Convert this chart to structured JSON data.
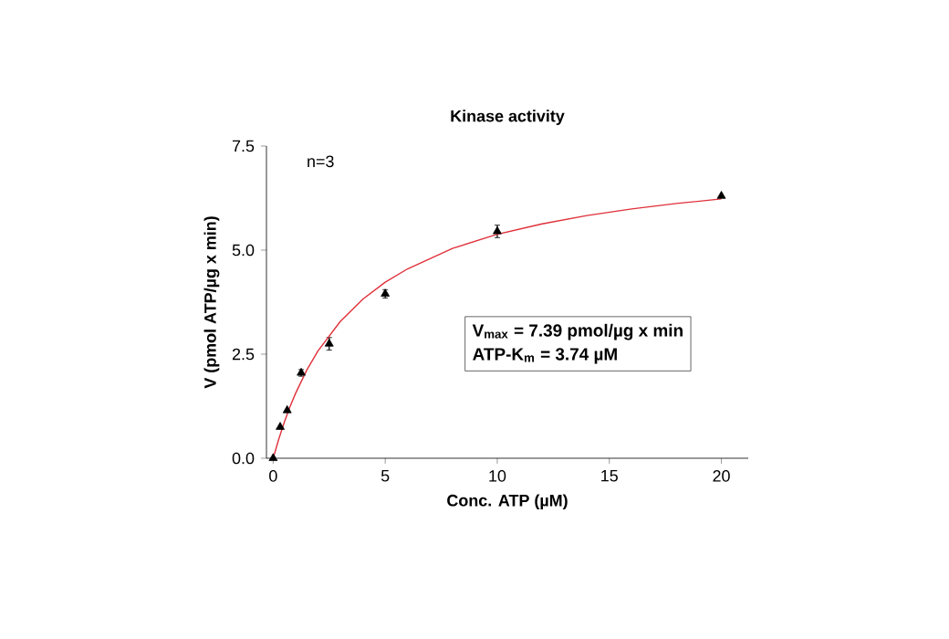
{
  "chart_data": {
    "type": "scatter",
    "title": "Kinase activity",
    "xlabel": "Conc. ATP (µM)",
    "ylabel": "V (pmol ATP/µg x min)",
    "annotations": [
      "n=3",
      "V$_{max}$ = 7.39 pmol/µg x min",
      "ATP-K$_{m}$ = 3.74 µM"
    ],
    "xlim": [
      -0.3,
      21.2
    ],
    "xticks": [
      0,
      5,
      10,
      15,
      20
    ],
    "ylim": [
      0,
      7.5
    ],
    "yticks": [
      {
        "value": 0,
        "label": "0.0"
      },
      {
        "value": 2.5,
        "label": "2.5"
      },
      {
        "value": 5,
        "label": "5.0"
      },
      {
        "value": 7.5,
        "label": "7.5"
      }
    ],
    "grid": false,
    "series": [
      {
        "marker": "triangle",
        "color": "#000000",
        "x": [
          0,
          0.3125,
          0.625,
          1.25,
          2.5,
          5,
          10,
          20
        ],
        "values": [
          0,
          0.75,
          1.15,
          2.05,
          2.75,
          3.95,
          5.45,
          6.3
        ],
        "errors": [
          null,
          null,
          null,
          0.08,
          0.15,
          0.1,
          0.15,
          null
        ]
      },
      {
        "type": "line",
        "marker": "none",
        "line_style": "solid",
        "color": "#e0303a",
        "x": [
          0,
          0.25,
          0.5,
          0.75,
          1,
          1.5,
          2,
          3,
          4,
          5,
          6,
          8,
          10,
          12,
          14,
          16,
          18,
          20
        ],
        "values": [
          0,
          0.46,
          0.87,
          1.24,
          1.56,
          2.12,
          2.58,
          3.29,
          3.82,
          4.23,
          4.55,
          5.04,
          5.38,
          5.63,
          5.83,
          5.99,
          6.12,
          6.23
        ]
      }
    ]
  }
}
